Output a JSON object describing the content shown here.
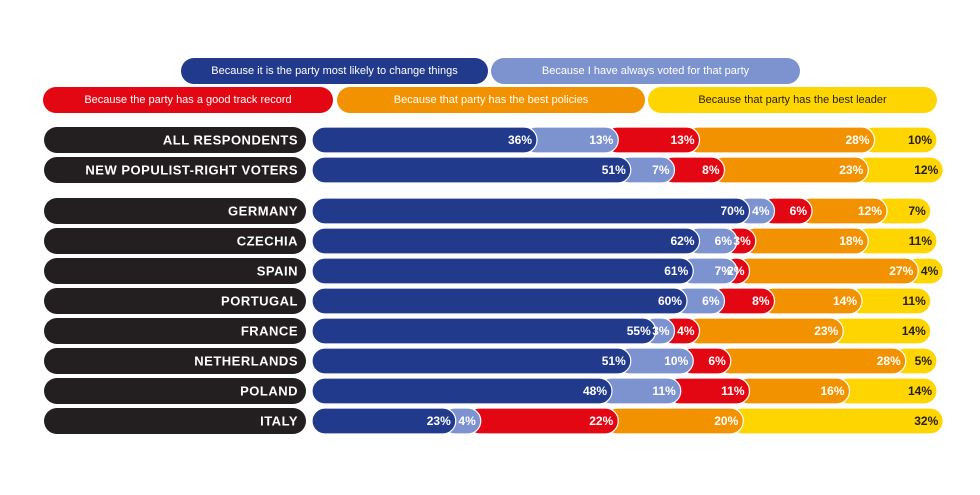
{
  "chart_data": {
    "type": "stacked-bar-horizontal",
    "categories": [
      "ALL RESPONDENTS",
      "NEW POPULIST-RIGHT VOTERS",
      "GERMANY",
      "CZECHIA",
      "SPAIN",
      "PORTUGAL",
      "FRANCE",
      "NETHERLANDS",
      "POLAND",
      "ITALY"
    ],
    "xlim": [
      0,
      100
    ],
    "series": [
      {
        "name": "Because it is the party most likely to change things",
        "color": "#213a8c",
        "label_color": "#ffffff",
        "values": [
          36,
          51,
          70,
          62,
          61,
          60,
          55,
          51,
          48,
          23
        ],
        "value_labels": [
          "36%",
          "51%",
          "70%",
          "62%",
          "61%",
          "60%",
          "55%",
          "51%",
          "48%",
          "23%"
        ]
      },
      {
        "name": "Because I have always voted for that party",
        "color": "#7d93d0",
        "label_color": "#ffffff",
        "values": [
          13,
          7,
          4,
          6,
          7,
          6,
          3,
          10,
          11,
          4
        ],
        "value_labels": [
          "13%",
          "7%",
          "4%",
          "6%",
          "7%",
          "6%",
          "3%",
          "10%",
          "11%",
          "4%"
        ]
      },
      {
        "name": "Because the party has a good track record",
        "color": "#e30613",
        "label_color": "#ffffff",
        "values": [
          13,
          8,
          6,
          3,
          2,
          8,
          4,
          6,
          11,
          22
        ],
        "value_labels": [
          "13%",
          "8%",
          "6%",
          "3%",
          "2%",
          "8%",
          "4%",
          "6%",
          "11%",
          "22%"
        ]
      },
      {
        "name": "Because that party has the best policies",
        "color": "#f39200",
        "label_color": "#ffffff",
        "values": [
          28,
          23,
          12,
          18,
          27,
          14,
          23,
          28,
          16,
          20
        ],
        "value_labels": [
          "28%",
          "23%",
          "12%",
          "18%",
          "27%",
          "14%",
          "23%",
          "28%",
          "16%",
          "20%"
        ]
      },
      {
        "name": "Because that party has the best leader",
        "color": "#ffd500",
        "label_color": "#231f20",
        "values": [
          10,
          12,
          7,
          11,
          4,
          11,
          14,
          5,
          14,
          32
        ],
        "value_labels": [
          "10%",
          "12%",
          "7%",
          "11%",
          "4%",
          "11%",
          "14%",
          "5%",
          "14%",
          "32%"
        ]
      }
    ]
  }
}
